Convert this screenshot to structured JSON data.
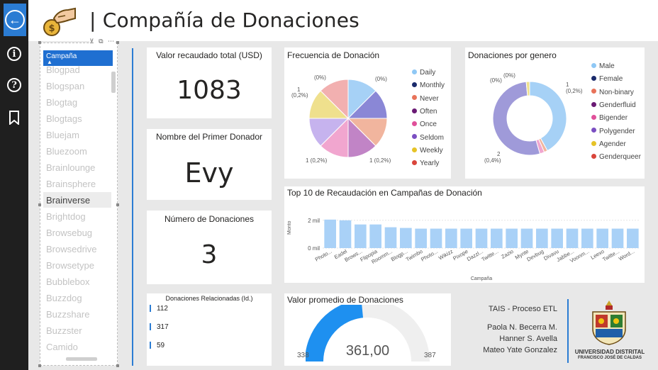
{
  "header": {
    "title": "| Compañía de Donaciones"
  },
  "slicer": {
    "field": "Campaña",
    "items": [
      "Blogpad",
      "Blogspan",
      "Blogtag",
      "Blogtags",
      "Bluejam",
      "Bluezoom",
      "Brainlounge",
      "Brainsphere",
      "Brainverse",
      "Brightdog",
      "Browsebug",
      "Browsedrive",
      "Browsetype",
      "Bubblebox",
      "Buzzdog",
      "Buzzshare",
      "Buzzster",
      "Camido"
    ],
    "selected": "Brainverse"
  },
  "kpis": {
    "total": {
      "label": "Valor recaudado total (USD)",
      "value": "1083"
    },
    "first_donor": {
      "label": "Nombre del Primer Donador",
      "value": "Evy"
    },
    "count": {
      "label": "Número de Donaciones",
      "value": "3"
    }
  },
  "related": {
    "label": "Donaciones Relacionadas (Id.)",
    "ids": [
      "112",
      "317",
      "59"
    ]
  },
  "frequency": {
    "title": "Frecuencia de Donación",
    "legend": [
      {
        "label": "Daily",
        "color": "#8fc8f5"
      },
      {
        "label": "Monthly",
        "color": "#1a2a6b"
      },
      {
        "label": "Never",
        "color": "#e8735a"
      },
      {
        "label": "Often",
        "color": "#6a1a74"
      },
      {
        "label": "Once",
        "color": "#e0509a"
      },
      {
        "label": "Seldom",
        "color": "#7b4fc2"
      },
      {
        "label": "Weekly",
        "color": "#e6c327"
      },
      {
        "label": "Yearly",
        "color": "#d9453b"
      }
    ],
    "labels": {
      "top_left": "(0%)",
      "top_right": "(0%)",
      "left_1": "1",
      "left_2": "(0,2%)",
      "bottom_left": "1 (0,2%)",
      "bottom_right": "1 (0,2%)"
    }
  },
  "gender": {
    "title": "Donaciones por genero",
    "legend": [
      {
        "label": "Male",
        "color": "#8fc8f5"
      },
      {
        "label": "Female",
        "color": "#1a2a6b"
      },
      {
        "label": "Non-binary",
        "color": "#e8735a"
      },
      {
        "label": "Genderfluid",
        "color": "#6a1a74"
      },
      {
        "label": "Bigender",
        "color": "#e0509a"
      },
      {
        "label": "Polygender",
        "color": "#7b4fc2"
      },
      {
        "label": "Agender",
        "color": "#e6c327"
      },
      {
        "label": "Genderqueer",
        "color": "#d9453b"
      }
    ],
    "labels": {
      "top_left": "(0%)",
      "top_mid": "(0%)",
      "right_1": "1",
      "right_2": "(0,2%)",
      "bottom_1": "2",
      "bottom_2": "(0,4%)"
    }
  },
  "top10": {
    "title": "Top 10 de Recaudación en Campañas de Donación",
    "ylabel": "Monto",
    "xlabel": "Campaña",
    "ticks": [
      "2 mil",
      "0 mil"
    ]
  },
  "average": {
    "title": "Valor promedio de Donaciones",
    "value": "361,00",
    "min": "338",
    "max": "387"
  },
  "credits": {
    "course": "TAIS - Proceso ETL",
    "authors": [
      "Paola N. Becerra M.",
      "Hanner S. Avella",
      "Mateo Yate Gonzalez"
    ],
    "university": "UNIVERSIDAD DISTRITAL",
    "university_sub": "FRANCISCO JOSÉ DE CALDAS"
  },
  "colors": {
    "accent": "#2b7cd3",
    "bar": "#a9d1f7",
    "gauge_fill": "#1e90f0",
    "gauge_track": "#efefef"
  },
  "chart_data": [
    {
      "type": "pie",
      "title": "Frecuencia de Donación",
      "categories": [
        "Daily",
        "Monthly",
        "Never",
        "Often",
        "Once",
        "Seldom",
        "Weekly",
        "Yearly"
      ],
      "values": [
        1,
        1,
        1,
        0,
        1,
        1,
        1,
        1
      ]
    },
    {
      "type": "pie",
      "title": "Donaciones por genero",
      "categories": [
        "Male",
        "Female",
        "Non-binary",
        "Genderfluid",
        "Bigender",
        "Polygender",
        "Agender",
        "Genderqueer"
      ],
      "values": [
        1,
        0,
        0,
        0,
        0,
        2,
        0,
        0
      ]
    },
    {
      "type": "bar",
      "title": "Top 10 de Recaudación en Campañas de Donación",
      "xlabel": "Campaña",
      "ylabel": "Monto",
      "categories": [
        "Photo...",
        "Eadel",
        "Brows...",
        "Flipopia",
        "Roomm...",
        "Blogp...",
        "Twimbo",
        "Photo...",
        "Wikizz",
        "Pixope",
        "Dazzl...",
        "Twitte...",
        "Zazio",
        "Mynte",
        "Devbug",
        "Divavu",
        "Jabbe...",
        "Voonm...",
        "Leexo",
        "Twitte...",
        "Word..."
      ],
      "values": [
        2.05,
        2.0,
        1.7,
        1.7,
        1.5,
        1.45,
        1.4,
        1.4,
        1.4,
        1.4,
        1.4,
        1.4,
        1.4,
        1.4,
        1.4,
        1.4,
        1.4,
        1.4,
        1.4,
        1.4,
        1.4
      ],
      "ylim": [
        0,
        2.5
      ]
    }
  ]
}
